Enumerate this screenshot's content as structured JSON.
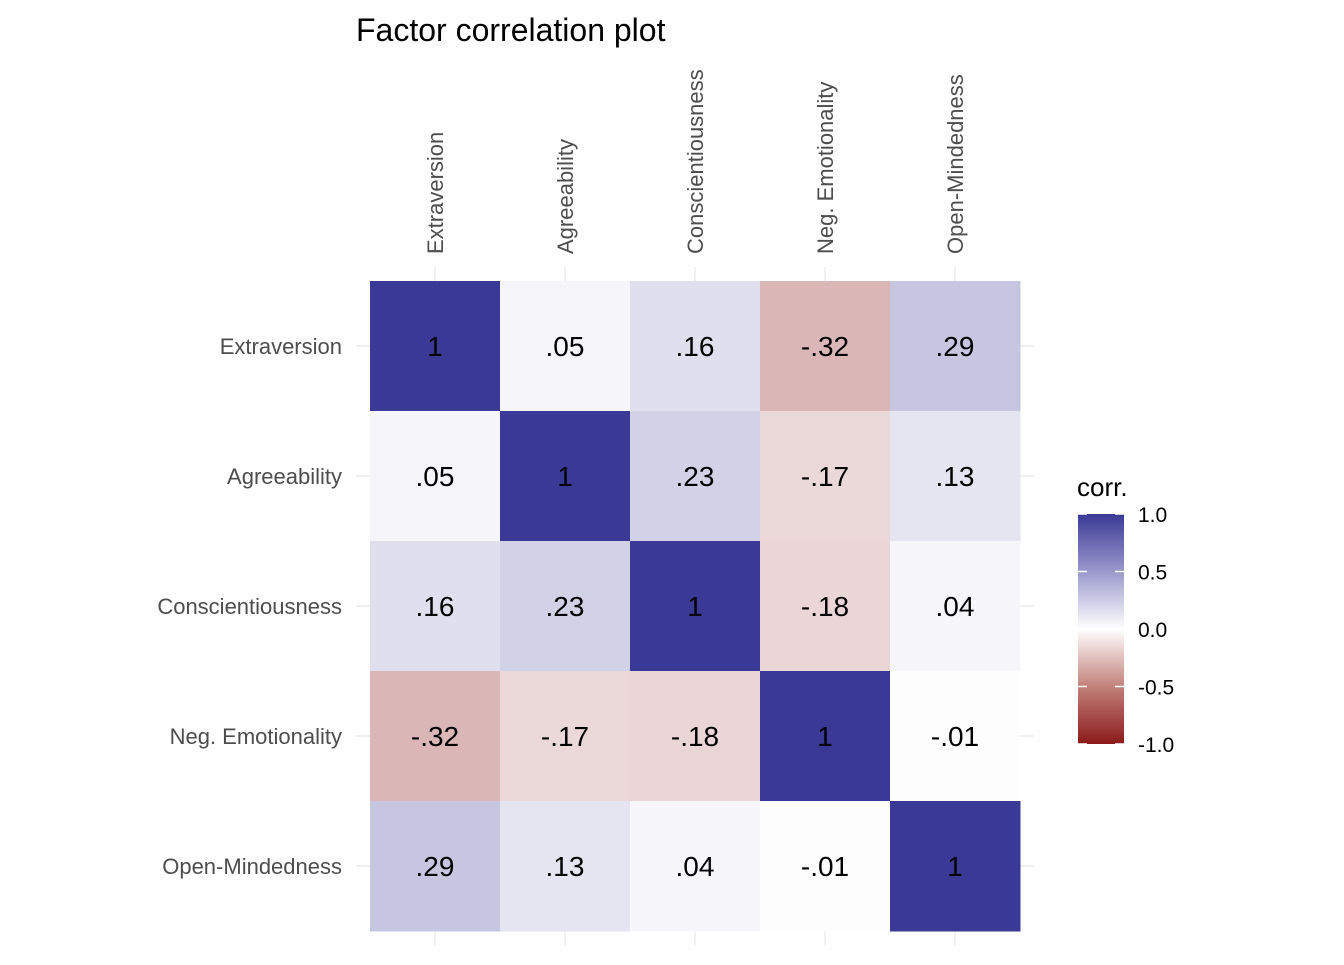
{
  "chart_data": {
    "type": "heatmap",
    "title": "Factor correlation plot",
    "xlabel": "",
    "ylabel": "",
    "variables": [
      "Extraversion",
      "Agreeability",
      "Conscientiousness",
      "Neg. Emotionality",
      "Open-Mindedness"
    ],
    "matrix": [
      [
        1,
        0.05,
        0.16,
        -0.32,
        0.29
      ],
      [
        0.05,
        1,
        0.23,
        -0.17,
        0.13
      ],
      [
        0.16,
        0.23,
        1,
        -0.18,
        0.04
      ],
      [
        -0.32,
        -0.17,
        -0.18,
        1,
        -0.01
      ],
      [
        0.29,
        0.13,
        0.04,
        -0.01,
        1
      ]
    ],
    "cell_labels": [
      [
        "1",
        ".05",
        ".16",
        "-.32",
        ".29"
      ],
      [
        ".05",
        "1",
        ".23",
        "-.17",
        ".13"
      ],
      [
        ".16",
        ".23",
        "1",
        "-.18",
        ".04"
      ],
      [
        "-.32",
        "-.17",
        "-.18",
        "1",
        "-.01"
      ],
      [
        ".29",
        ".13",
        ".04",
        "-.01",
        "1"
      ]
    ],
    "x_axis_position": "top",
    "x_tick_rotation": "vertical",
    "grid": true,
    "legend": {
      "title": "corr.",
      "placement": "right",
      "limits": [
        -1,
        1
      ],
      "ticks": [
        1.0,
        0.5,
        0.0,
        -0.5,
        -1.0
      ],
      "tick_labels": [
        "1.0",
        "0.5",
        "0.0",
        "-0.5",
        "-1.0"
      ],
      "colors": {
        "low": "#8b1a1a",
        "mid": "#ffffff",
        "high": "#3a3a96"
      }
    }
  }
}
